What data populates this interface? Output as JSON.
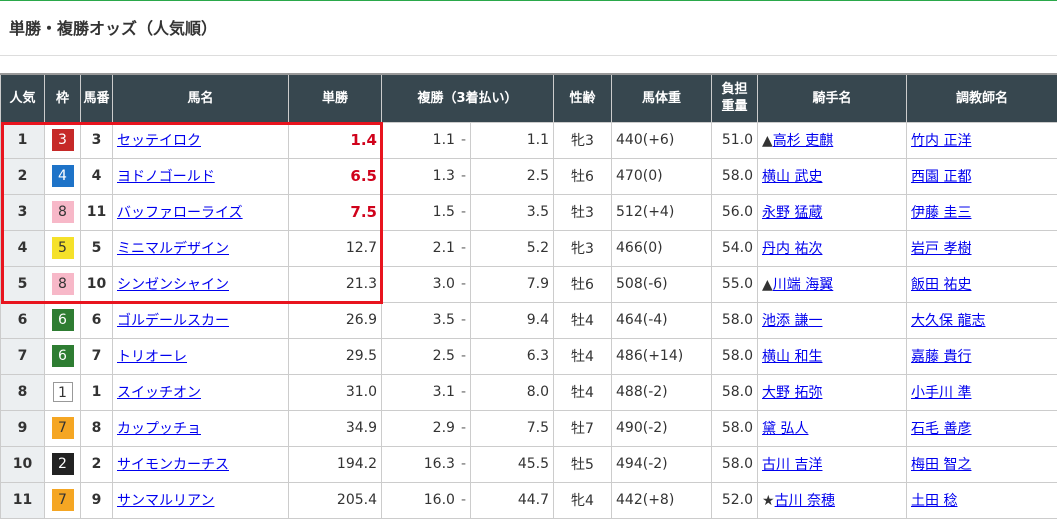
{
  "title": "単勝・複勝オッズ（人気順）",
  "headers": {
    "pop": "人気",
    "frame": "枠",
    "num": "馬番",
    "name": "馬名",
    "win": "単勝",
    "place": "複勝（3着払い）",
    "sexage": "性齢",
    "weight": "馬体重",
    "load1": "負担",
    "load2": "重量",
    "jockey": "騎手名",
    "trainer": "調教師名"
  },
  "frame_colors": {
    "1": "#ffffff",
    "2": "#222222",
    "3": "#c62928",
    "4": "#1e73c8",
    "5": "#f5e12a",
    "6": "#2e7d32",
    "7": "#f5a623",
    "8": "#f7b8c8"
  },
  "rows": [
    {
      "pop": "1",
      "frame": "3",
      "num": "3",
      "name": "セッテイロク",
      "win": "1.4",
      "place_min": "1.1",
      "place_max": "1.1",
      "sexage": "牝3",
      "weight": "440(+6)",
      "load": "51.0",
      "mark": "▲",
      "jockey": "高杉 吏麒",
      "trainer": "竹内 正洋"
    },
    {
      "pop": "2",
      "frame": "4",
      "num": "4",
      "name": "ヨドノゴールド",
      "win": "6.5",
      "place_min": "1.3",
      "place_max": "2.5",
      "sexage": "牡6",
      "weight": "470(0)",
      "load": "58.0",
      "mark": "",
      "jockey": "横山 武史",
      "trainer": "西園 正都"
    },
    {
      "pop": "3",
      "frame": "8",
      "num": "11",
      "name": "バッファローライズ",
      "win": "7.5",
      "place_min": "1.5",
      "place_max": "3.5",
      "sexage": "牡3",
      "weight": "512(+4)",
      "load": "56.0",
      "mark": "",
      "jockey": "永野 猛蔵",
      "trainer": "伊藤 圭三"
    },
    {
      "pop": "4",
      "frame": "5",
      "num": "5",
      "name": "ミニマルデザイン",
      "win": "12.7",
      "place_min": "2.1",
      "place_max": "5.2",
      "sexage": "牝3",
      "weight": "466(0)",
      "load": "54.0",
      "mark": "",
      "jockey": "丹内 祐次",
      "trainer": "岩戸 孝樹"
    },
    {
      "pop": "5",
      "frame": "8",
      "num": "10",
      "name": "シンゼンシャイン",
      "win": "21.3",
      "place_min": "3.0",
      "place_max": "7.9",
      "sexage": "牡6",
      "weight": "508(-6)",
      "load": "55.0",
      "mark": "▲",
      "jockey": "川端 海翼",
      "trainer": "飯田 祐史"
    },
    {
      "pop": "6",
      "frame": "6",
      "num": "6",
      "name": "ゴルデールスカー",
      "win": "26.9",
      "place_min": "3.5",
      "place_max": "9.4",
      "sexage": "牡4",
      "weight": "464(-4)",
      "load": "58.0",
      "mark": "",
      "jockey": "池添 謙一",
      "trainer": "大久保 龍志"
    },
    {
      "pop": "7",
      "frame": "6",
      "num": "7",
      "name": "トリオーレ",
      "win": "29.5",
      "place_min": "2.5",
      "place_max": "6.3",
      "sexage": "牡4",
      "weight": "486(+14)",
      "load": "58.0",
      "mark": "",
      "jockey": "横山 和生",
      "trainer": "嘉藤 貴行"
    },
    {
      "pop": "8",
      "frame": "1",
      "num": "1",
      "name": "スイッチオン",
      "win": "31.0",
      "place_min": "3.1",
      "place_max": "8.0",
      "sexage": "牡4",
      "weight": "488(-2)",
      "load": "58.0",
      "mark": "",
      "jockey": "大野 拓弥",
      "trainer": "小手川 準"
    },
    {
      "pop": "9",
      "frame": "7",
      "num": "8",
      "name": "カップッチョ",
      "win": "34.9",
      "place_min": "2.9",
      "place_max": "7.5",
      "sexage": "牡7",
      "weight": "490(-2)",
      "load": "58.0",
      "mark": "",
      "jockey": "黛 弘人",
      "trainer": "石毛 善彦"
    },
    {
      "pop": "10",
      "frame": "2",
      "num": "2",
      "name": "サイモンカーチス",
      "win": "194.2",
      "place_min": "16.3",
      "place_max": "45.5",
      "sexage": "牡5",
      "weight": "494(-2)",
      "load": "58.0",
      "mark": "",
      "jockey": "古川 吉洋",
      "trainer": "梅田 智之"
    },
    {
      "pop": "11",
      "frame": "7",
      "num": "9",
      "name": "サンマルリアン",
      "win": "205.4",
      "place_min": "16.0",
      "place_max": "44.7",
      "sexage": "牝4",
      "weight": "442(+8)",
      "load": "52.0",
      "mark": "★",
      "jockey": "古川 奈穂",
      "trainer": "土田 稔"
    }
  ],
  "highlight_color": "#e8141e",
  "win_highlight_color": "#d0021b"
}
